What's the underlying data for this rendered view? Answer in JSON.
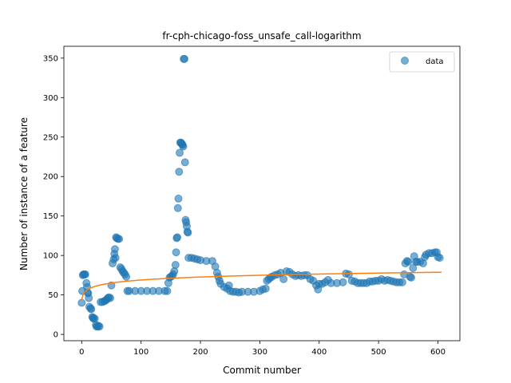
{
  "chart_data": {
    "type": "scatter",
    "title": "fr-cph-chicago-foss_unsafe_call-logarithm",
    "xlabel": "Commit number",
    "ylabel": "Number of instance of a feature",
    "xlim": [
      -30,
      637
    ],
    "ylim": [
      -8,
      365
    ],
    "xticks": [
      0,
      100,
      200,
      300,
      400,
      500,
      600
    ],
    "yticks": [
      0,
      50,
      100,
      150,
      200,
      250,
      300,
      350
    ],
    "grid": false,
    "legend": {
      "placement": "top-right",
      "entries": [
        "data"
      ]
    },
    "colors": {
      "data": "#1f77b4",
      "fit": "#ff7f0e"
    },
    "series": [
      {
        "name": "data",
        "kind": "scatter",
        "points": [
          [
            0,
            40
          ],
          [
            1,
            55
          ],
          [
            2,
            75
          ],
          [
            3,
            76
          ],
          [
            5,
            76
          ],
          [
            6,
            76
          ],
          [
            8,
            65
          ],
          [
            9,
            60
          ],
          [
            10,
            53
          ],
          [
            11,
            52
          ],
          [
            12,
            46
          ],
          [
            13,
            35
          ],
          [
            15,
            33
          ],
          [
            16,
            32
          ],
          [
            18,
            22
          ],
          [
            19,
            21
          ],
          [
            20,
            20
          ],
          [
            22,
            20
          ],
          [
            24,
            12
          ],
          [
            25,
            10
          ],
          [
            27,
            10
          ],
          [
            28,
            11
          ],
          [
            30,
            10
          ],
          [
            32,
            41
          ],
          [
            35,
            41
          ],
          [
            38,
            42
          ],
          [
            40,
            43
          ],
          [
            42,
            44
          ],
          [
            44,
            46
          ],
          [
            46,
            47
          ],
          [
            48,
            46
          ],
          [
            50,
            62
          ],
          [
            52,
            90
          ],
          [
            54,
            95
          ],
          [
            55,
            102
          ],
          [
            56,
            108
          ],
          [
            57,
            97
          ],
          [
            58,
            123
          ],
          [
            59,
            122
          ],
          [
            61,
            121
          ],
          [
            63,
            121
          ],
          [
            65,
            85
          ],
          [
            67,
            83
          ],
          [
            69,
            80
          ],
          [
            71,
            78
          ],
          [
            73,
            76
          ],
          [
            75,
            73
          ],
          [
            77,
            55
          ],
          [
            80,
            55
          ],
          [
            90,
            55
          ],
          [
            100,
            55
          ],
          [
            110,
            55
          ],
          [
            120,
            55
          ],
          [
            130,
            55
          ],
          [
            140,
            55
          ],
          [
            144,
            55
          ],
          [
            146,
            65
          ],
          [
            148,
            72
          ],
          [
            150,
            73
          ],
          [
            152,
            74
          ],
          [
            154,
            76
          ],
          [
            156,
            80
          ],
          [
            158,
            88
          ],
          [
            159,
            104
          ],
          [
            160,
            122
          ],
          [
            161,
            123
          ],
          [
            162,
            160
          ],
          [
            163,
            172
          ],
          [
            164,
            206
          ],
          [
            165,
            230
          ],
          [
            166,
            243
          ],
          [
            167,
            243
          ],
          [
            168,
            242
          ],
          [
            169,
            241
          ],
          [
            170,
            240
          ],
          [
            171,
            238
          ],
          [
            172,
            349
          ],
          [
            173,
            349
          ],
          [
            174,
            218
          ],
          [
            175,
            145
          ],
          [
            176,
            142
          ],
          [
            177,
            137
          ],
          [
            178,
            130
          ],
          [
            179,
            129
          ],
          [
            180,
            97
          ],
          [
            185,
            97
          ],
          [
            190,
            96
          ],
          [
            195,
            95
          ],
          [
            200,
            94
          ],
          [
            210,
            93
          ],
          [
            220,
            93
          ],
          [
            225,
            86
          ],
          [
            228,
            78
          ],
          [
            230,
            73
          ],
          [
            232,
            68
          ],
          [
            234,
            64
          ],
          [
            240,
            60
          ],
          [
            245,
            58
          ],
          [
            248,
            62
          ],
          [
            250,
            55
          ],
          [
            255,
            54
          ],
          [
            260,
            54
          ],
          [
            265,
            53
          ],
          [
            270,
            54
          ],
          [
            280,
            54
          ],
          [
            290,
            54
          ],
          [
            300,
            55
          ],
          [
            305,
            57
          ],
          [
            310,
            58
          ],
          [
            312,
            68
          ],
          [
            315,
            70
          ],
          [
            318,
            72
          ],
          [
            320,
            73
          ],
          [
            325,
            75
          ],
          [
            330,
            76
          ],
          [
            335,
            78
          ],
          [
            340,
            70
          ],
          [
            345,
            80
          ],
          [
            350,
            79
          ],
          [
            355,
            76
          ],
          [
            360,
            74
          ],
          [
            365,
            75
          ],
          [
            370,
            74
          ],
          [
            375,
            75
          ],
          [
            380,
            75
          ],
          [
            385,
            70
          ],
          [
            390,
            68
          ],
          [
            395,
            62
          ],
          [
            398,
            57
          ],
          [
            400,
            64
          ],
          [
            405,
            64
          ],
          [
            410,
            66
          ],
          [
            415,
            69
          ],
          [
            420,
            65
          ],
          [
            430,
            65
          ],
          [
            440,
            66
          ],
          [
            445,
            77
          ],
          [
            450,
            76
          ],
          [
            455,
            68
          ],
          [
            460,
            67
          ],
          [
            465,
            65
          ],
          [
            470,
            65
          ],
          [
            475,
            65
          ],
          [
            480,
            65
          ],
          [
            485,
            67
          ],
          [
            490,
            67
          ],
          [
            495,
            68
          ],
          [
            500,
            68
          ],
          [
            505,
            70
          ],
          [
            510,
            68
          ],
          [
            515,
            69
          ],
          [
            520,
            68
          ],
          [
            525,
            67
          ],
          [
            530,
            66
          ],
          [
            535,
            66
          ],
          [
            540,
            66
          ],
          [
            543,
            76
          ],
          [
            545,
            90
          ],
          [
            548,
            93
          ],
          [
            550,
            92
          ],
          [
            553,
            73
          ],
          [
            555,
            72
          ],
          [
            558,
            84
          ],
          [
            560,
            99
          ],
          [
            563,
            92
          ],
          [
            565,
            92
          ],
          [
            570,
            92
          ],
          [
            575,
            90
          ],
          [
            578,
            98
          ],
          [
            580,
            101
          ],
          [
            585,
            103
          ],
          [
            590,
            103
          ],
          [
            595,
            104
          ],
          [
            598,
            104
          ],
          [
            600,
            98
          ],
          [
            603,
            97
          ]
        ]
      },
      {
        "name": "",
        "kind": "line",
        "a": 43.5,
        "b": 5.5
      }
    ]
  }
}
